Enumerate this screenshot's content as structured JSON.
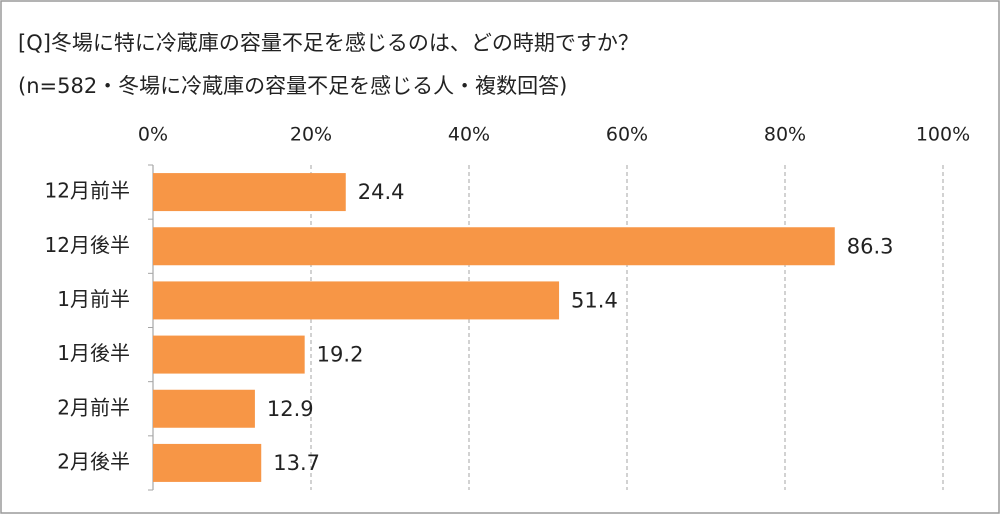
{
  "chart_data": {
    "type": "bar",
    "orientation": "horizontal",
    "title": "[Q]冬場に特に冷蔵庫の容量不足を感じるのは、どの時期ですか？",
    "subtitle": "(n=582・冬場に冷蔵庫の容量不足を感じる人・複数回答)",
    "categories": [
      "12月前半",
      "12月後半",
      "1月前半",
      "1月後半",
      "2月前半",
      "2月後半"
    ],
    "values": [
      24.4,
      86.3,
      51.4,
      19.2,
      12.9,
      13.7
    ],
    "color": "#f79646",
    "xlim": [
      0,
      100
    ],
    "xticks": [
      {
        "value": 0,
        "label": "0%"
      },
      {
        "value": 20,
        "label": "20%"
      },
      {
        "value": 40,
        "label": "40%"
      },
      {
        "value": 60,
        "label": "60%"
      },
      {
        "value": 80,
        "label": "80%"
      },
      {
        "value": 100,
        "label": "100%"
      }
    ],
    "grid": true
  }
}
